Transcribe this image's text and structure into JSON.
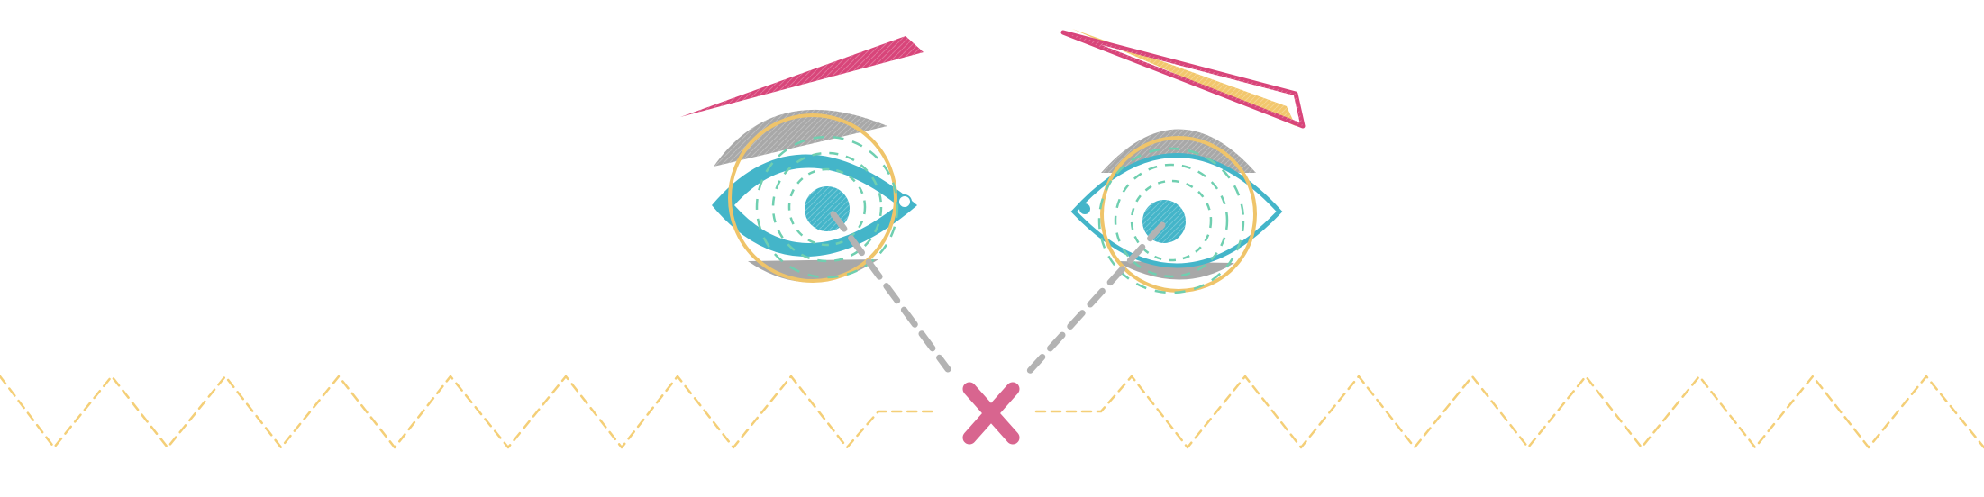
{
  "illustration": {
    "subject": "cross-eyed-face",
    "colors": {
      "background": "#ffffff",
      "brow_pink": "#d8457a",
      "brow_yellow": "#f2c76d",
      "lid_gray": "#a8a8a8",
      "iris_teal": "#44b5c9",
      "ring_yellow": "#efc46a",
      "dash_mint": "#6fcfb0",
      "gaze_gray": "#b3b3b3",
      "zigzag_yellow": "#f4cf78",
      "cross_pink": "#d8658f"
    },
    "icons": {
      "left_eye": "eye-icon",
      "right_eye": "eye-icon",
      "focus_mark": "x-mark-icon"
    }
  }
}
